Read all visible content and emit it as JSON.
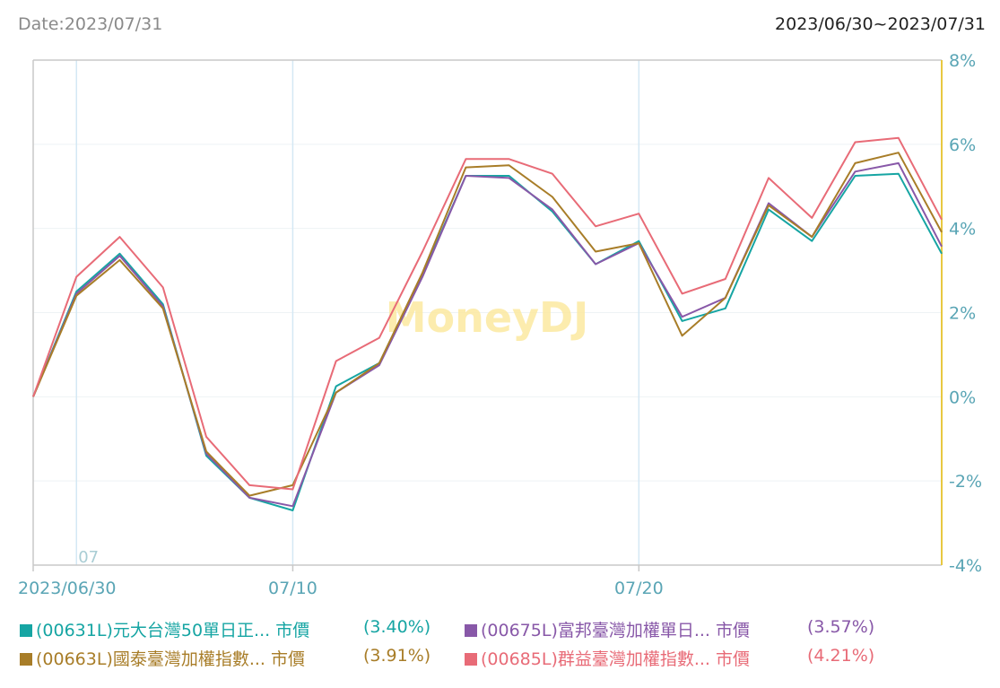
{
  "header": {
    "date_label": "Date:2023/07/31",
    "range_label": "2023/06/30~2023/07/31"
  },
  "watermark": "MoneyDJ",
  "colors": {
    "axis": "#c8c8c8",
    "grid": "#eef2f5",
    "vgrid": "#d4e8f4",
    "right_axis": "#e8c840",
    "tick_text": "#5aa5b5",
    "watermark": "#fbe9a0"
  },
  "chart_data": {
    "type": "line",
    "x": [
      "2023/06/30",
      "2023/07/03",
      "2023/07/04",
      "2023/07/05",
      "2023/07/06",
      "2023/07/07",
      "2023/07/10",
      "2023/07/11",
      "2023/07/12",
      "2023/07/13",
      "2023/07/14",
      "2023/07/17",
      "2023/07/18",
      "2023/07/19",
      "2023/07/20",
      "2023/07/21",
      "2023/07/24",
      "2023/07/25",
      "2023/07/26",
      "2023/07/27",
      "2023/07/28",
      "2023/07/31"
    ],
    "x_tick_labels": [
      {
        "index": 0,
        "label": "2023/06/30"
      },
      {
        "index": 6,
        "label": "07/10"
      },
      {
        "index": 14,
        "label": "07/20"
      }
    ],
    "x_month_label": {
      "index": 1,
      "label": "07"
    },
    "vertical_gridlines_at_index": [
      1,
      6,
      14
    ],
    "ylim": [
      -4,
      8
    ],
    "y_ticks": [
      8,
      6,
      4,
      2,
      0,
      -2,
      -4
    ],
    "y_tick_labels": [
      "8%",
      "6%",
      "4%",
      "2%",
      "0%",
      "-2%",
      "-4%"
    ],
    "y_axis_side": "right",
    "grid": true,
    "series": [
      {
        "name": "(00631L)元大台灣50單日正... 市價",
        "value_label": "(3.40%)",
        "color": "#16a5a3",
        "values": [
          0,
          2.5,
          3.4,
          2.2,
          -1.4,
          -2.4,
          -2.7,
          0.25,
          0.8,
          2.9,
          5.25,
          5.25,
          4.4,
          3.15,
          3.7,
          1.8,
          2.1,
          4.45,
          3.7,
          5.25,
          5.3,
          3.4
        ]
      },
      {
        "name": "(00675L)富邦臺灣加權單日... 市價",
        "value_label": "(3.57%)",
        "color": "#8858a8",
        "values": [
          0,
          2.45,
          3.35,
          2.15,
          -1.35,
          -2.4,
          -2.6,
          0.1,
          0.75,
          2.85,
          5.25,
          5.2,
          4.45,
          3.15,
          3.65,
          1.9,
          2.35,
          4.6,
          3.8,
          5.35,
          5.55,
          3.57
        ]
      },
      {
        "name": "(00663L)國泰臺灣加權指數... 市價",
        "value_label": "(3.91%)",
        "color": "#a87d28",
        "values": [
          0,
          2.4,
          3.25,
          2.1,
          -1.3,
          -2.35,
          -2.1,
          0.1,
          0.8,
          2.95,
          5.45,
          5.5,
          4.75,
          3.45,
          3.65,
          1.45,
          2.35,
          4.55,
          3.8,
          5.55,
          5.8,
          3.91
        ]
      },
      {
        "name": "(00685L)群益臺灣加權指數... 市價",
        "value_label": "(4.21%)",
        "color": "#e86b77",
        "values": [
          0,
          2.85,
          3.8,
          2.6,
          -0.95,
          -2.1,
          -2.2,
          0.85,
          1.4,
          3.45,
          5.65,
          5.65,
          5.3,
          4.05,
          4.35,
          2.45,
          2.8,
          5.2,
          4.25,
          6.05,
          6.15,
          4.21
        ]
      }
    ]
  }
}
